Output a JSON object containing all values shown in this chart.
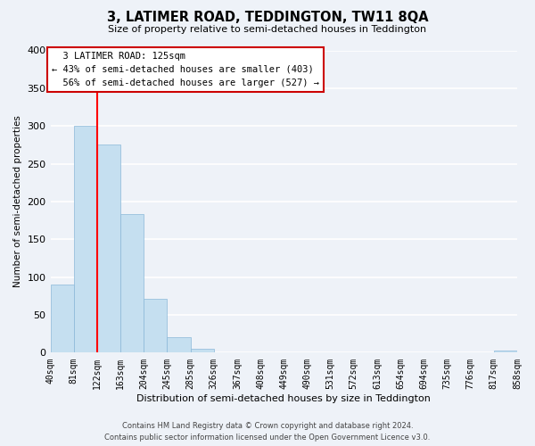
{
  "title": "3, LATIMER ROAD, TEDDINGTON, TW11 8QA",
  "subtitle": "Size of property relative to semi-detached houses in Teddington",
  "xlabel": "Distribution of semi-detached houses by size in Teddington",
  "ylabel": "Number of semi-detached properties",
  "bin_labels": [
    "40sqm",
    "81sqm",
    "122sqm",
    "163sqm",
    "204sqm",
    "245sqm",
    "285sqm",
    "326sqm",
    "367sqm",
    "408sqm",
    "449sqm",
    "490sqm",
    "531sqm",
    "572sqm",
    "613sqm",
    "654sqm",
    "694sqm",
    "735sqm",
    "776sqm",
    "817sqm",
    "858sqm"
  ],
  "bar_values": [
    90,
    300,
    275,
    183,
    71,
    20,
    5,
    0,
    0,
    0,
    0,
    0,
    0,
    0,
    0,
    0,
    0,
    0,
    0,
    3,
    0
  ],
  "bar_color": "#c5dff0",
  "bar_edge_color": "#8ab8d8",
  "property_line_bin": 2,
  "property_label": "3 LATIMER ROAD: 125sqm",
  "pct_smaller": 43,
  "pct_smaller_count": 403,
  "pct_larger": 56,
  "pct_larger_count": 527,
  "vline_color": "red",
  "annotation_box_color": "white",
  "annotation_box_edge": "#cc0000",
  "ylim": [
    0,
    400
  ],
  "yticks": [
    0,
    50,
    100,
    150,
    200,
    250,
    300,
    350,
    400
  ],
  "footer_line1": "Contains HM Land Registry data © Crown copyright and database right 2024.",
  "footer_line2": "Contains public sector information licensed under the Open Government Licence v3.0.",
  "bg_color": "#eef2f8",
  "grid_color": "white"
}
